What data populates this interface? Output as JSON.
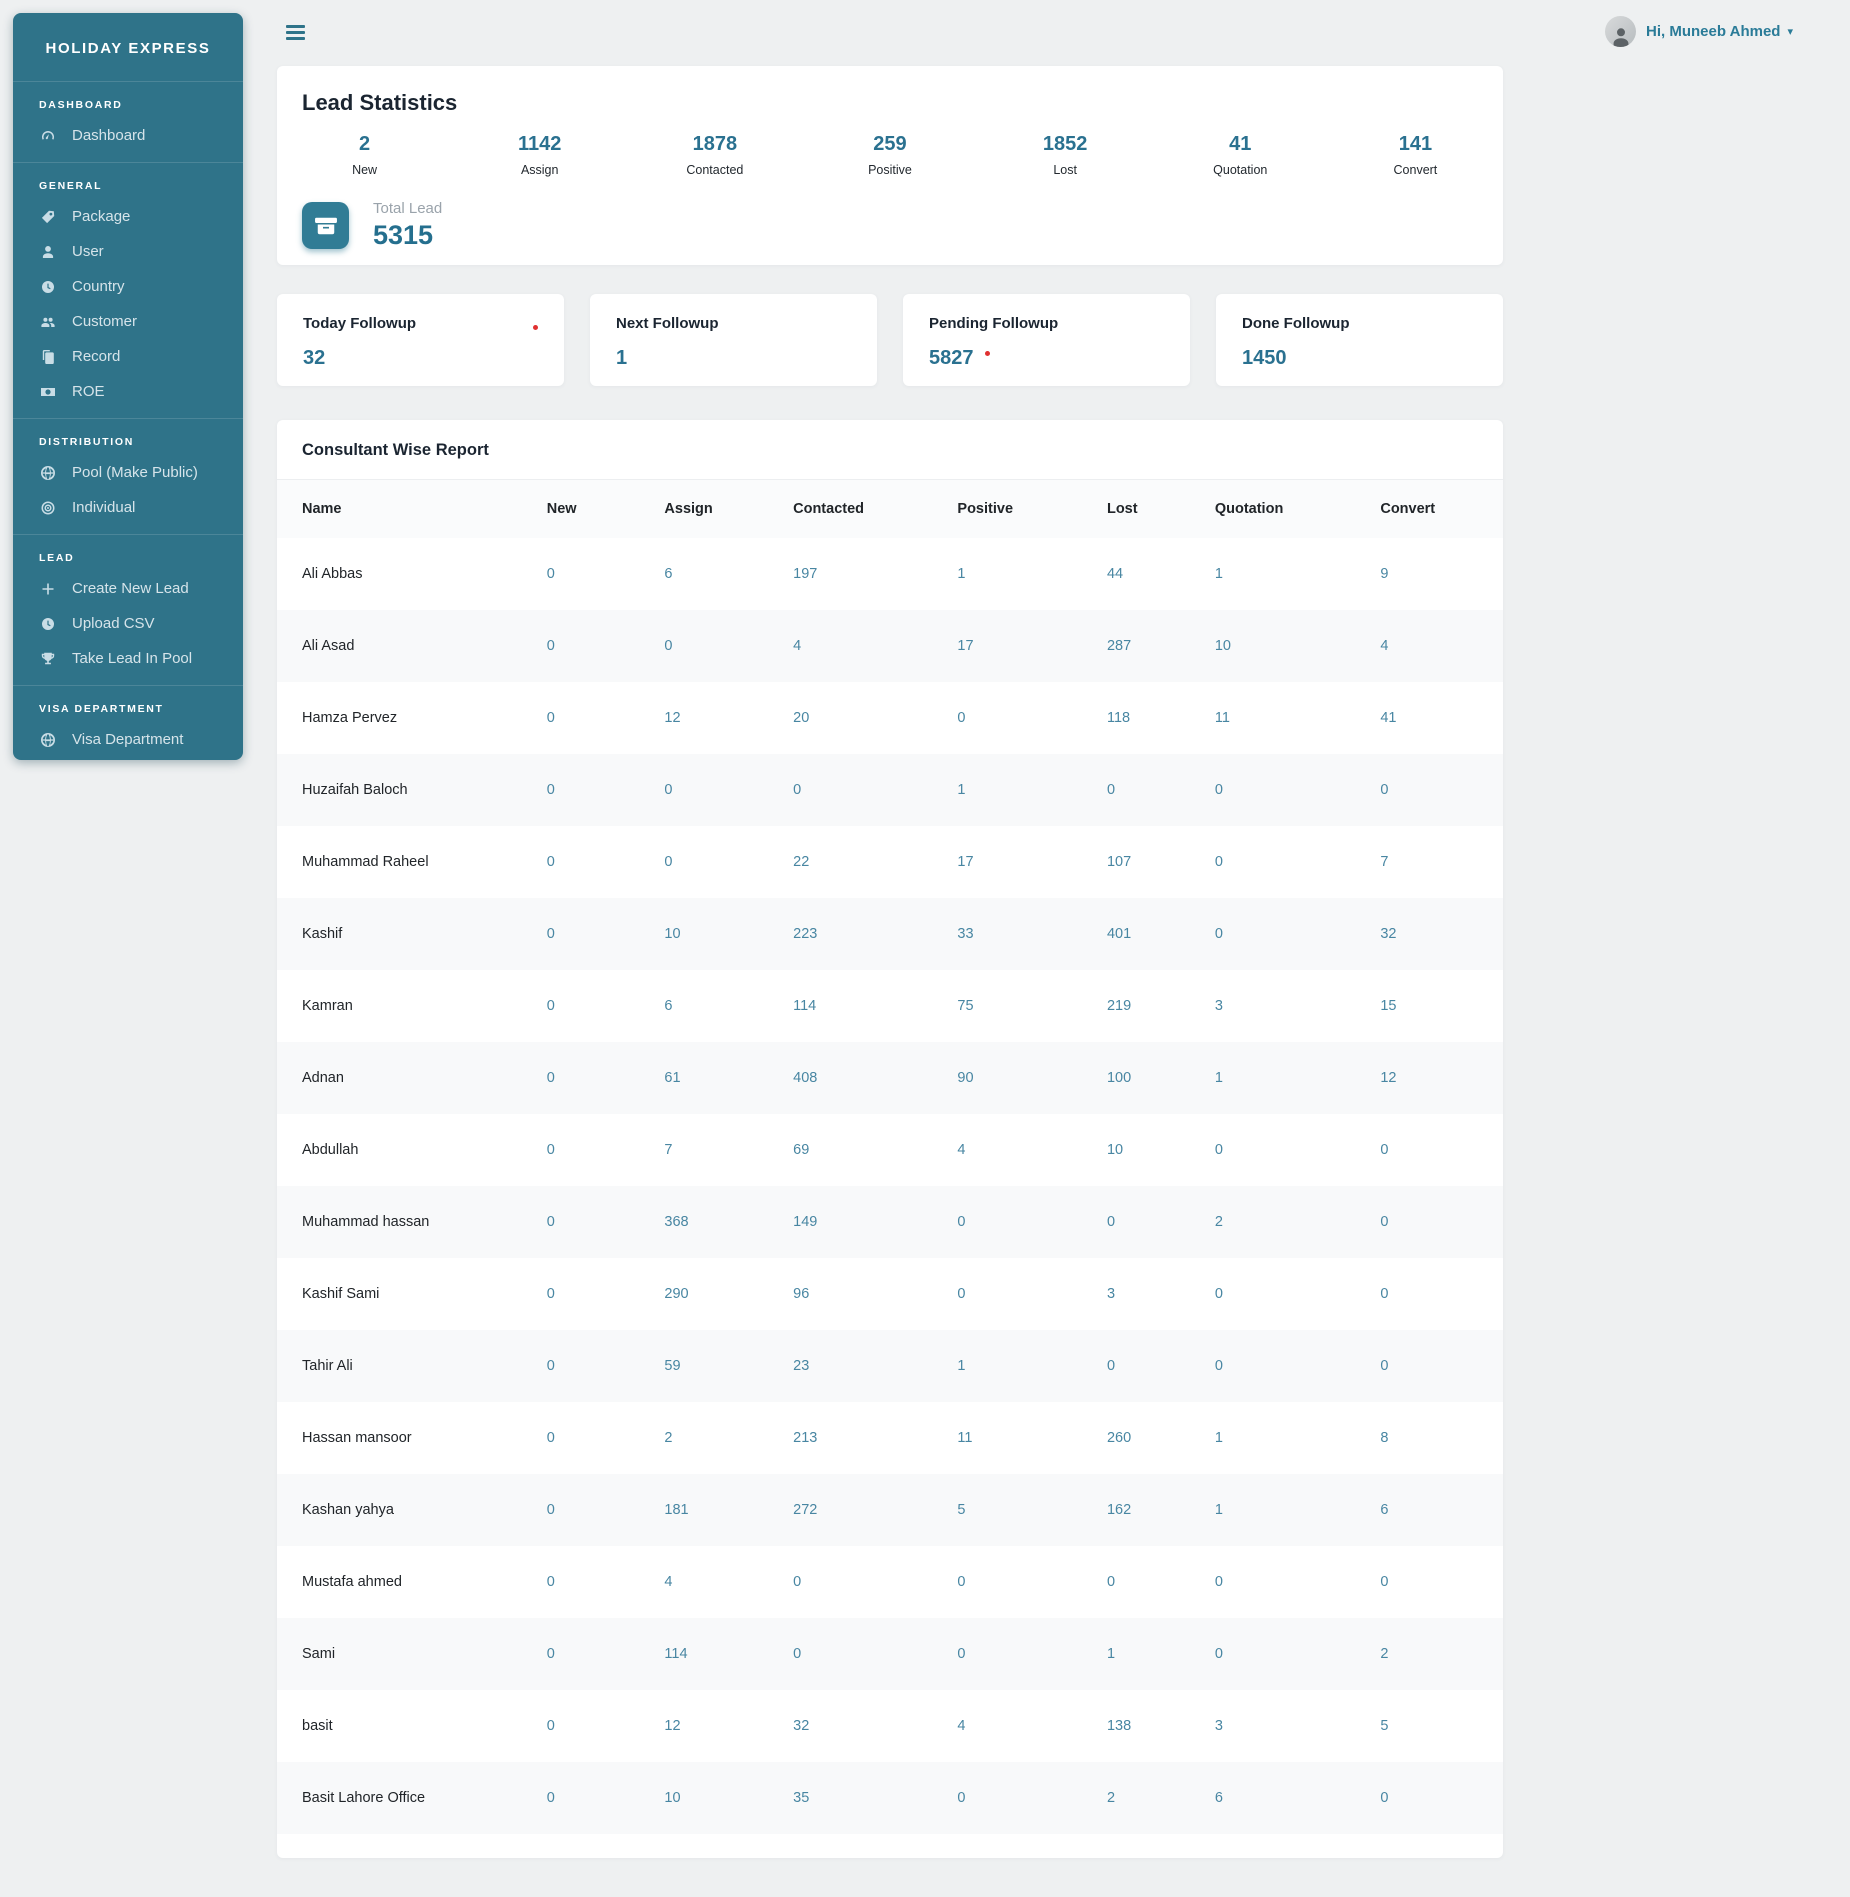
{
  "app": {
    "brand": "HOLIDAY EXPRESS",
    "user_greeting": "Hi, Muneeb Ahmed",
    "colors": {
      "sidebar": "#2f7389",
      "accent_teal": "#2a7190",
      "alert_red": "#e03131",
      "page_bg": "#eef0f1"
    }
  },
  "sidebar": {
    "sections": [
      {
        "label": "DASHBOARD",
        "items": [
          {
            "label": "Dashboard",
            "icon": "speedometer-icon"
          }
        ]
      },
      {
        "label": "GENERAL",
        "items": [
          {
            "label": "Package",
            "icon": "ticket-icon"
          },
          {
            "label": "User",
            "icon": "user-icon"
          },
          {
            "label": "Country",
            "icon": "clock-icon"
          },
          {
            "label": "Customer",
            "icon": "users-icon"
          },
          {
            "label": "Record",
            "icon": "copy-icon"
          },
          {
            "label": "ROE",
            "icon": "money-icon"
          }
        ]
      },
      {
        "label": "DISTRIBUTION",
        "items": [
          {
            "label": "Pool (Make Public)",
            "icon": "globe-icon"
          },
          {
            "label": "Individual",
            "icon": "target-icon"
          }
        ]
      },
      {
        "label": "LEAD",
        "items": [
          {
            "label": "Create New Lead",
            "icon": "plus-icon"
          },
          {
            "label": "Upload CSV",
            "icon": "history-icon"
          },
          {
            "label": "Take Lead In Pool",
            "icon": "trophy-icon"
          }
        ]
      },
      {
        "label": "VISA DEPARTMENT",
        "items": [
          {
            "label": "Visa Department",
            "icon": "globe-icon"
          }
        ]
      }
    ]
  },
  "lead_statistics": {
    "title": "Lead Statistics",
    "stats": [
      {
        "value": 2,
        "label": "New"
      },
      {
        "value": 1142,
        "label": "Assign"
      },
      {
        "value": 1878,
        "label": "Contacted"
      },
      {
        "value": 259,
        "label": "Positive"
      },
      {
        "value": 1852,
        "label": "Lost"
      },
      {
        "value": 41,
        "label": "Quotation"
      },
      {
        "value": 141,
        "label": "Convert"
      }
    ],
    "total": {
      "label": "Total Lead",
      "value": 5315,
      "icon": "archive-icon"
    }
  },
  "followups": [
    {
      "title": "Today Followup",
      "value": 32,
      "alert_dot": "title"
    },
    {
      "title": "Next Followup",
      "value": 1
    },
    {
      "title": "Pending Followup",
      "value": 5827,
      "alert_dot": "value"
    },
    {
      "title": "Done Followup",
      "value": 1450
    }
  ],
  "report": {
    "title": "Consultant Wise Report",
    "columns": [
      "Name",
      "New",
      "Assign",
      "Contacted",
      "Positive",
      "Lost",
      "Quotation",
      "Convert"
    ],
    "rows": [
      {
        "name": "Ali Abbas",
        "values": [
          0,
          6,
          197,
          1,
          44,
          1,
          9
        ]
      },
      {
        "name": "Ali Asad",
        "values": [
          0,
          0,
          4,
          17,
          287,
          10,
          4
        ]
      },
      {
        "name": "Hamza Pervez",
        "values": [
          0,
          12,
          20,
          0,
          118,
          11,
          41
        ]
      },
      {
        "name": "Huzaifah Baloch",
        "values": [
          0,
          0,
          0,
          1,
          0,
          0,
          0
        ]
      },
      {
        "name": "Muhammad Raheel",
        "values": [
          0,
          0,
          22,
          17,
          107,
          0,
          7
        ]
      },
      {
        "name": "Kashif",
        "values": [
          0,
          10,
          223,
          33,
          401,
          0,
          32
        ]
      },
      {
        "name": "Kamran",
        "values": [
          0,
          6,
          114,
          75,
          219,
          3,
          15
        ]
      },
      {
        "name": "Adnan",
        "values": [
          0,
          61,
          408,
          90,
          100,
          1,
          12
        ]
      },
      {
        "name": "Abdullah",
        "values": [
          0,
          7,
          69,
          4,
          10,
          0,
          0
        ]
      },
      {
        "name": "Muhammad hassan",
        "values": [
          0,
          368,
          149,
          0,
          0,
          2,
          0
        ]
      },
      {
        "name": "Kashif Sami",
        "values": [
          0,
          290,
          96,
          0,
          3,
          0,
          0
        ]
      },
      {
        "name": "Tahir Ali",
        "values": [
          0,
          59,
          23,
          1,
          0,
          0,
          0
        ]
      },
      {
        "name": "Hassan mansoor",
        "values": [
          0,
          2,
          213,
          11,
          260,
          1,
          8
        ]
      },
      {
        "name": "Kashan yahya",
        "values": [
          0,
          181,
          272,
          5,
          162,
          1,
          6
        ]
      },
      {
        "name": "Mustafa ahmed",
        "values": [
          0,
          4,
          0,
          0,
          0,
          0,
          0
        ]
      },
      {
        "name": "Sami",
        "values": [
          0,
          114,
          0,
          0,
          1,
          0,
          2
        ]
      },
      {
        "name": "basit",
        "values": [
          0,
          12,
          32,
          4,
          138,
          3,
          5
        ]
      },
      {
        "name": "Basit Lahore Office",
        "values": [
          0,
          10,
          35,
          0,
          2,
          6,
          0
        ]
      }
    ]
  }
}
